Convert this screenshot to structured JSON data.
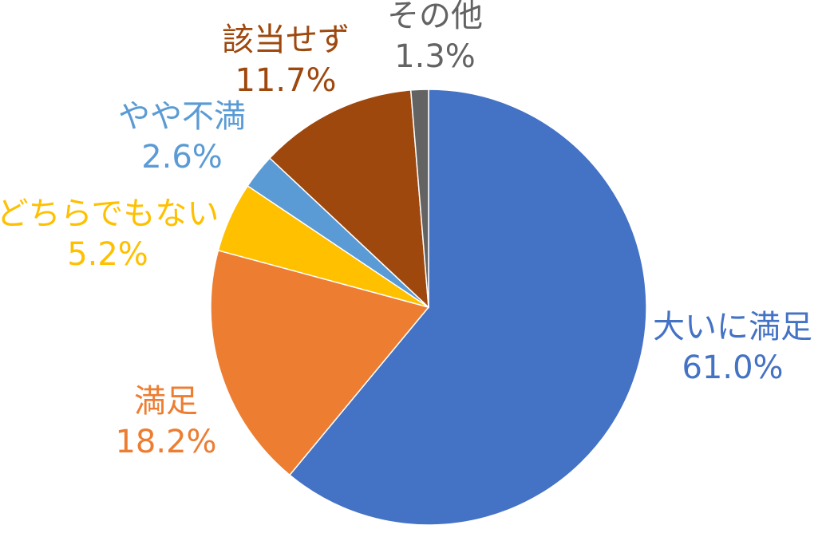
{
  "chart_data": {
    "type": "pie",
    "categories": [
      "大いに満足",
      "満足",
      "どちらでもない",
      "やや不満",
      "該当せず",
      "その他"
    ],
    "values": [
      61.0,
      18.2,
      5.2,
      2.6,
      11.7,
      1.3
    ],
    "value_labels": [
      "61.0%",
      "18.2%",
      "5.2%",
      "2.6%",
      "11.7%",
      "1.3%"
    ],
    "colors": [
      "#4472c4",
      "#ed7d31",
      "#ffc000",
      "#5b9bd5",
      "#9e480e",
      "#636363"
    ]
  }
}
